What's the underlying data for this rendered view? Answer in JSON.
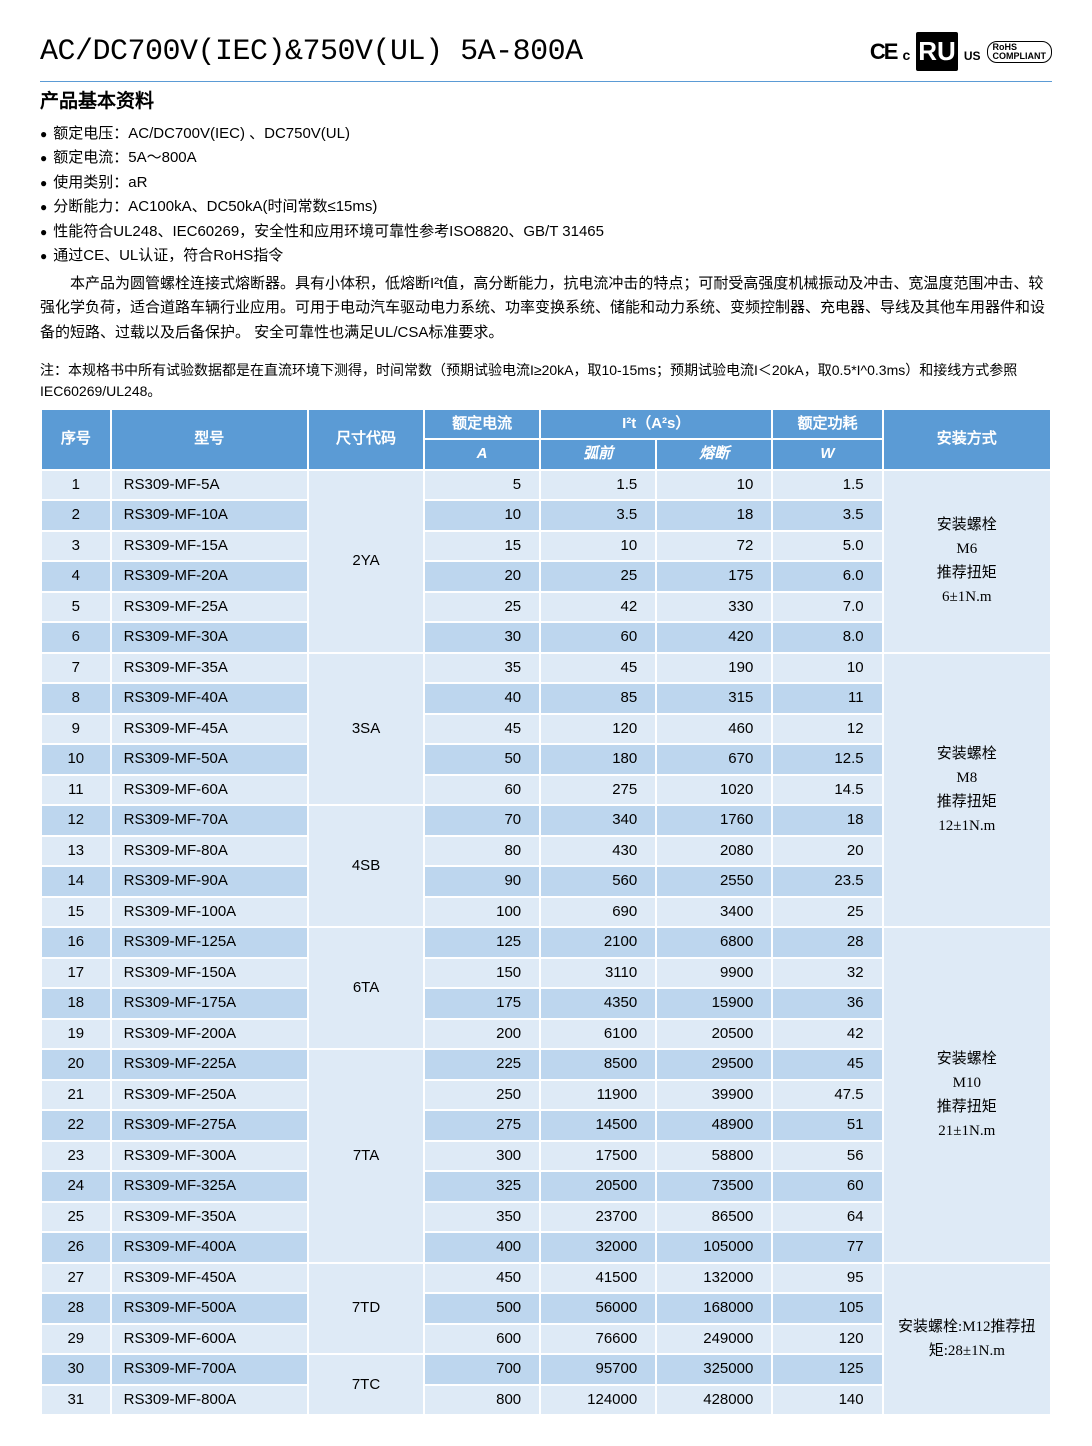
{
  "title": "AC/DC700V(IEC)&750V(UL)  5A-800A",
  "badges": {
    "ce": "CE",
    "c": "c",
    "ul": "RU",
    "us": "US",
    "rohs1": "RoHS",
    "rohs2": "COMPLIANT"
  },
  "section_heading": "产品基本资料",
  "specs": [
    "额定电压：AC/DC700V(IEC) 、DC750V(UL)",
    "额定电流：5A～800A",
    "使用类别：aR",
    "分断能力：AC100kA、DC50kA(时间常数≤15ms)",
    "性能符合UL248、IEC60269，安全性和应用环境可靠性参考ISO8820、GB/T 31465",
    "通过CE、UL认证，符合RoHS指令"
  ],
  "description": "本产品为圆管螺栓连接式熔断器。具有小体积，低熔断I²t值，高分断能力，抗电流冲击的特点；可耐受高强度机械振动及冲击、宽温度范围冲击、较强化学负荷，适合道路车辆行业应用。可用于电动汽车驱动电力系统、功率变换系统、储能和动力系统、变频控制器、充电器、导线及其他车用器件和设备的短路、过载以及后备保护。 安全可靠性也满足UL/CSA标准要求。",
  "note": "注：本规格书中所有试验数据都是在直流环境下测得，时间常数（预期试验电流I≥20kA，取10-15ms；预期试验电流I＜20kA，取0.5*I^0.3ms）和接线方式参照IEC60269/UL248。",
  "headers": {
    "idx": "序号",
    "model": "型号",
    "code": "尺寸代码",
    "current": "额定电流",
    "i2t": "I²t（A²s）",
    "power": "额定功耗",
    "mount": "安装方式",
    "current_sub": "A",
    "i2t_pre": "弧前",
    "i2t_melt": "熔断",
    "power_sub": "W"
  },
  "groups": [
    {
      "code": "2YA",
      "mount": "安装螺栓\nM6\n推荐扭矩\n6±1N.m",
      "rows": [
        {
          "n": 1,
          "m": "RS309-MF-5A",
          "a": 5,
          "p": "1.5",
          "q": 10,
          "w": "1.5"
        },
        {
          "n": 2,
          "m": "RS309-MF-10A",
          "a": 10,
          "p": "3.5",
          "q": 18,
          "w": "3.5"
        },
        {
          "n": 3,
          "m": "RS309-MF-15A",
          "a": 15,
          "p": "10",
          "q": 72,
          "w": "5.0"
        },
        {
          "n": 4,
          "m": "RS309-MF-20A",
          "a": 20,
          "p": "25",
          "q": 175,
          "w": "6.0"
        },
        {
          "n": 5,
          "m": "RS309-MF-25A",
          "a": 25,
          "p": "42",
          "q": 330,
          "w": "7.0"
        },
        {
          "n": 6,
          "m": "RS309-MF-30A",
          "a": 30,
          "p": "60",
          "q": 420,
          "w": "8.0"
        }
      ]
    },
    {
      "code": "3SA",
      "mount": "",
      "rows": [
        {
          "n": 7,
          "m": "RS309-MF-35A",
          "a": 35,
          "p": "45",
          "q": 190,
          "w": "10"
        },
        {
          "n": 8,
          "m": "RS309-MF-40A",
          "a": 40,
          "p": "85",
          "q": 315,
          "w": "11"
        },
        {
          "n": 9,
          "m": "RS309-MF-45A",
          "a": 45,
          "p": "120",
          "q": 460,
          "w": "12"
        },
        {
          "n": 10,
          "m": "RS309-MF-50A",
          "a": 50,
          "p": "180",
          "q": 670,
          "w": "12.5"
        },
        {
          "n": 11,
          "m": "RS309-MF-60A",
          "a": 60,
          "p": "275",
          "q": 1020,
          "w": "14.5"
        }
      ]
    },
    {
      "code": "4SB",
      "mount": "安装螺栓\nM8\n推荐扭矩\n12±1N.m",
      "mountSpan": 9,
      "rows": [
        {
          "n": 12,
          "m": "RS309-MF-70A",
          "a": 70,
          "p": "340",
          "q": 1760,
          "w": "18"
        },
        {
          "n": 13,
          "m": "RS309-MF-80A",
          "a": 80,
          "p": "430",
          "q": 2080,
          "w": "20"
        },
        {
          "n": 14,
          "m": "RS309-MF-90A",
          "a": 90,
          "p": "560",
          "q": 2550,
          "w": "23.5"
        },
        {
          "n": 15,
          "m": "RS309-MF-100A",
          "a": 100,
          "p": "690",
          "q": 3400,
          "w": "25"
        }
      ]
    },
    {
      "code": "6TA",
      "mount": "",
      "rows": [
        {
          "n": 16,
          "m": "RS309-MF-125A",
          "a": 125,
          "p": "2100",
          "q": 6800,
          "w": "28"
        },
        {
          "n": 17,
          "m": "RS309-MF-150A",
          "a": 150,
          "p": "3110",
          "q": 9900,
          "w": "32"
        },
        {
          "n": 18,
          "m": "RS309-MF-175A",
          "a": 175,
          "p": "4350",
          "q": 15900,
          "w": "36"
        },
        {
          "n": 19,
          "m": "RS309-MF-200A",
          "a": 200,
          "p": "6100",
          "q": 20500,
          "w": "42"
        }
      ]
    },
    {
      "code": "7TA",
      "mount": "安装螺栓\nM10\n推荐扭矩\n21±1N.m",
      "mountSpan": 11,
      "rows": [
        {
          "n": 20,
          "m": "RS309-MF-225A",
          "a": 225,
          "p": "8500",
          "q": 29500,
          "w": "45"
        },
        {
          "n": 21,
          "m": "RS309-MF-250A",
          "a": 250,
          "p": "11900",
          "q": 39900,
          "w": "47.5"
        },
        {
          "n": 22,
          "m": "RS309-MF-275A",
          "a": 275,
          "p": "14500",
          "q": 48900,
          "w": "51"
        },
        {
          "n": 23,
          "m": "RS309-MF-300A",
          "a": 300,
          "p": "17500",
          "q": 58800,
          "w": "56"
        },
        {
          "n": 24,
          "m": "RS309-MF-325A",
          "a": 325,
          "p": "20500",
          "q": 73500,
          "w": "60"
        },
        {
          "n": 25,
          "m": "RS309-MF-350A",
          "a": 350,
          "p": "23700",
          "q": 86500,
          "w": "64"
        },
        {
          "n": 26,
          "m": "RS309-MF-400A",
          "a": 400,
          "p": "32000",
          "q": 105000,
          "w": "77"
        }
      ]
    },
    {
      "code": "7TD",
      "mount": "安装螺栓:M12推荐扭矩:28±1N.m",
      "mountSpan": 5,
      "rows": [
        {
          "n": 27,
          "m": "RS309-MF-450A",
          "a": 450,
          "p": "41500",
          "q": 132000,
          "w": "95"
        },
        {
          "n": 28,
          "m": "RS309-MF-500A",
          "a": 500,
          "p": "56000",
          "q": 168000,
          "w": "105"
        },
        {
          "n": 29,
          "m": "RS309-MF-600A",
          "a": 600,
          "p": "76600",
          "q": 249000,
          "w": "120"
        }
      ]
    },
    {
      "code": "7TC",
      "mount": "",
      "rows": [
        {
          "n": 30,
          "m": "RS309-MF-700A",
          "a": 700,
          "p": "95700",
          "q": 325000,
          "w": "125"
        },
        {
          "n": 31,
          "m": "RS309-MF-800A",
          "a": 800,
          "p": "124000",
          "q": 428000,
          "w": "140"
        }
      ]
    }
  ],
  "mountBlocks": [
    {
      "start": 1,
      "span": 6,
      "text": "安装螺栓\nM6\n推荐扭矩\n6±1N.m"
    },
    {
      "start": 7,
      "span": 9,
      "text": "安装螺栓\nM8\n推荐扭矩\n12±1N.m"
    },
    {
      "start": 16,
      "span": 11,
      "text": "安装螺栓\nM10\n推荐扭矩\n21±1N.m"
    },
    {
      "start": 27,
      "span": 5,
      "text": "安装螺栓:M12推荐扭矩:28±1N.m"
    }
  ]
}
